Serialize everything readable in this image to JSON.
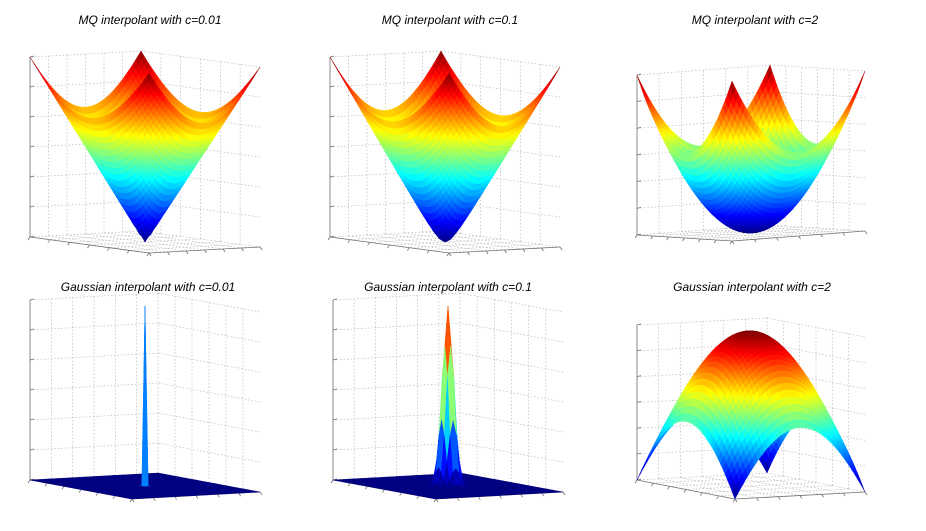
{
  "chart_data": [
    {
      "type": "surface",
      "kind": "mq",
      "title": "MQ interpolant with c=0.01",
      "c": 0.01,
      "colormap": "jet",
      "grid": true
    },
    {
      "type": "surface",
      "kind": "mq",
      "title": "MQ interpolant with c=0.1",
      "c": 0.1,
      "colormap": "jet",
      "grid": true
    },
    {
      "type": "surface",
      "kind": "mq",
      "title": "MQ interpolant with c=2",
      "c": 2,
      "colormap": "jet",
      "grid": true
    },
    {
      "type": "surface",
      "kind": "gaussian",
      "title": "Gaussian interpolant with c=0.01",
      "c": 0.01,
      "colormap": "jet",
      "grid": true
    },
    {
      "type": "surface",
      "kind": "gaussian",
      "title": "Gaussian interpolant with c=0.1",
      "c": 0.1,
      "colormap": "jet",
      "grid": true
    },
    {
      "type": "surface",
      "kind": "gaussian",
      "title": "Gaussian interpolant with c=2",
      "c": 2,
      "colormap": "jet",
      "grid": true
    }
  ]
}
